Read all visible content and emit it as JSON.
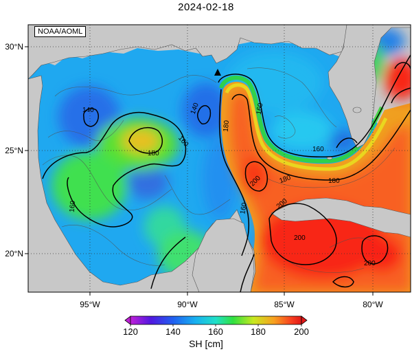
{
  "title": "2024-02-18",
  "credit": "NOAA/AOML",
  "lat_labels": [
    "30°N",
    "25°N",
    "20°N"
  ],
  "lon_labels": [
    "95°W",
    "90°W",
    "85°W",
    "80°W"
  ],
  "contour_labels": [
    "140",
    "140",
    "160",
    "180",
    "180",
    "160",
    "160",
    "180",
    "200",
    "160",
    "200",
    "200",
    "200",
    "180",
    "160"
  ],
  "colorbar": {
    "ticks": [
      "120",
      "140",
      "160",
      "180",
      "200"
    ],
    "label": "SH [cm]",
    "colors": [
      "#c020d8",
      "#3020e0",
      "#1890f0",
      "#20d8e8",
      "#20e890",
      "#40e020",
      "#d8e820",
      "#f8a020",
      "#f84020",
      "#e81818"
    ]
  },
  "marker": "triangle-icon"
}
